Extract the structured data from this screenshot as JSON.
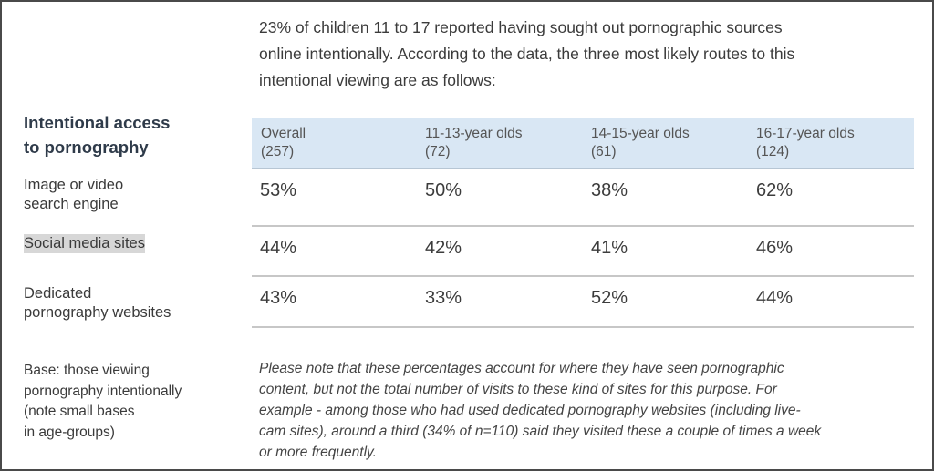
{
  "intro": {
    "lines": [
      "23% of children 11 to 17 reported having sought out pornographic sources",
      "online intentionally. According to the data, the three most likely routes to this",
      "intentional viewing are as follows:"
    ]
  },
  "section": {
    "title_lines": [
      "Intentional access",
      "to pornography"
    ]
  },
  "table": {
    "columns": [
      {
        "label": "Overall",
        "base": "(257)"
      },
      {
        "label": "11-13-year olds",
        "base": "(72)"
      },
      {
        "label": "14-15-year olds",
        "base": "(61)"
      },
      {
        "label": "16-17-year olds",
        "base": "(124)"
      }
    ],
    "rows": [
      {
        "label_lines": [
          "Image or video",
          "search engine"
        ],
        "values": [
          "53%",
          "50%",
          "38%",
          "62%"
        ]
      },
      {
        "label_lines": [
          "Social media sites"
        ],
        "values": [
          "44%",
          "42%",
          "41%",
          "46%"
        ]
      },
      {
        "label_lines": [
          "Dedicated",
          "pornography websites"
        ],
        "values": [
          "43%",
          "33%",
          "52%",
          "44%"
        ]
      }
    ]
  },
  "base_note": {
    "lines": [
      "Base: those viewing",
      "pornography intentionally",
      "(note small bases",
      "in age-groups)"
    ]
  },
  "footnote": {
    "lines": [
      "Please note that these percentages account for where they have seen pornographic",
      "content, but not the total number of visits to these kind of sites for this purpose. For",
      "example - among those who had used dedicated pornography websites (including live-",
      "cam sites), around a third (34% of n=110) said they visited these a couple of times a week",
      "or more frequently."
    ]
  }
}
